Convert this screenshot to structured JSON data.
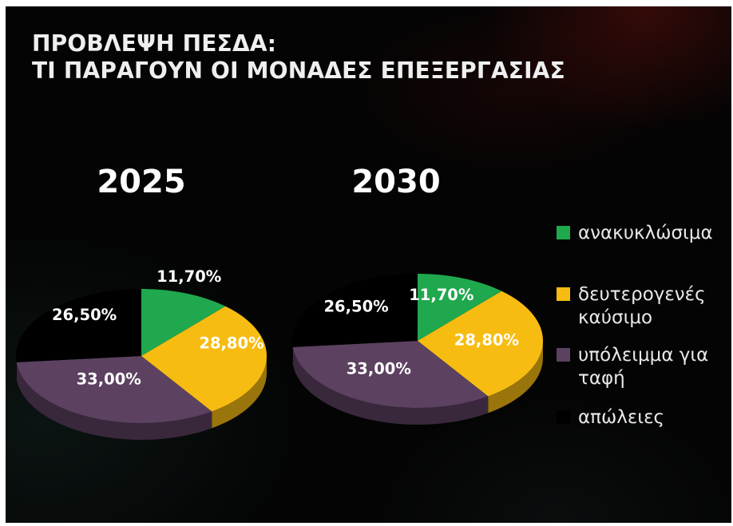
{
  "title": {
    "line1": "ΠΡΟΒΛΕΨΗ ΠΕΣΔΑ:",
    "line2": "ΤΙ ΠΑΡΑΓΟΥΝ ΟΙ ΜΟΝΑΔΕΣ ΕΠΕΞΕΡΓΑΣΙΑΣ"
  },
  "chart_data": {
    "type": "pie",
    "style": "3d",
    "title": "ΠΡΟΒΛΕΨΗ ΠΕΣΔΑ: ΤΙ ΠΑΡΑΓΟΥΝ ΟΙ ΜΟΝΑΔΕΣ ΕΠΕΞΕΡΓΑΣΙΑΣ",
    "categories": [
      "ανακυκλώσιμα",
      "δευτερογενές καύσιμο",
      "υπόλειμμα για ταφή",
      "απώλειες"
    ],
    "colors": [
      "#1FA84D",
      "#F7BC11",
      "#5C4161",
      "#000000"
    ],
    "legend_position": "right",
    "pies": [
      {
        "label": "2025",
        "values": [
          11.7,
          28.8,
          33.0,
          26.5
        ],
        "value_labels": [
          "11,70%",
          "28,80%",
          "33,00%",
          "26,50%"
        ]
      },
      {
        "label": "2030",
        "values": [
          11.7,
          28.8,
          33.0,
          26.5
        ],
        "value_labels": [
          "11,70%",
          "28,80%",
          "33,00%",
          "26,50%"
        ]
      }
    ]
  },
  "legend": {
    "items": [
      {
        "label": "ανακυκλώσιμα",
        "color": "#1FA84D"
      },
      {
        "label": "δευτερογενές καύσιμο",
        "color": "#F7BC11"
      },
      {
        "label": "υπόλειμμα για ταφή",
        "color": "#5C4161"
      },
      {
        "label": "απώλειες",
        "color": "#000000"
      }
    ]
  }
}
